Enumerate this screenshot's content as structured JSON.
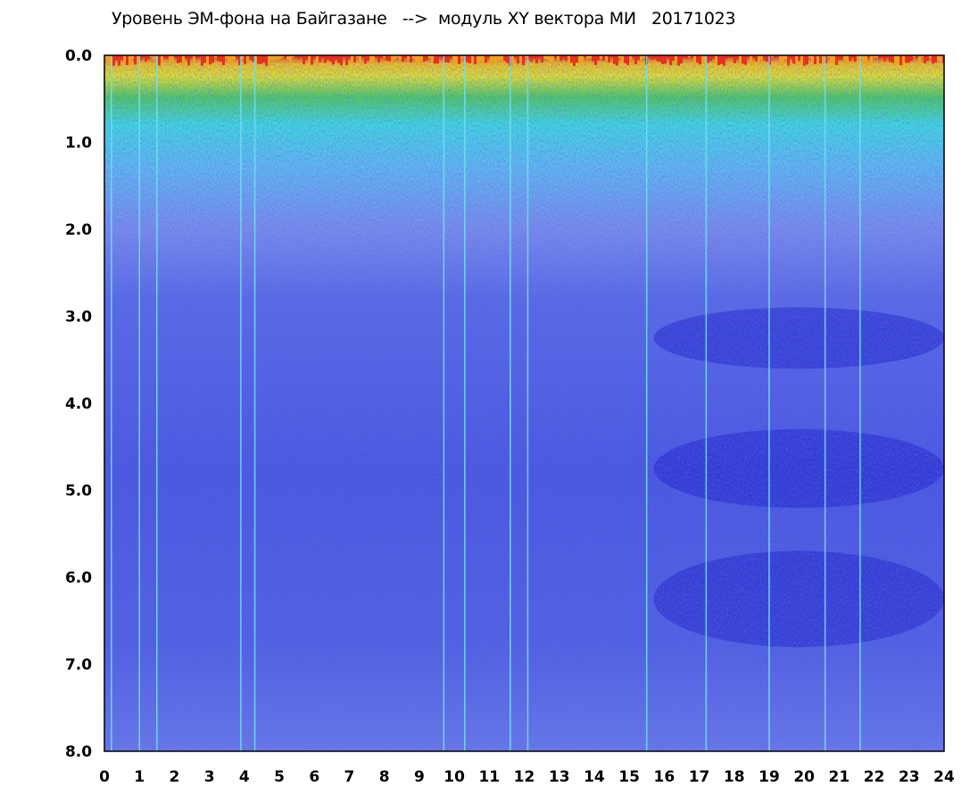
{
  "chart_data": {
    "type": "heatmap",
    "title": "Уровень ЭМ-фона на Байгазане   -->  модуль XY вектора МИ   20171023",
    "xlabel": "",
    "ylabel": "",
    "xlim": [
      0,
      24
    ],
    "ylim": [
      0.0,
      8.0
    ],
    "y_axis_inverted": true,
    "x_ticks": [
      "0",
      "1",
      "2",
      "3",
      "4",
      "5",
      "6",
      "7",
      "8",
      "9",
      "10",
      "11",
      "12",
      "13",
      "14",
      "15",
      "16",
      "17",
      "18",
      "19",
      "20",
      "21",
      "22",
      "23",
      "24"
    ],
    "y_ticks": [
      "0.0",
      "1.0",
      "2.0",
      "3.0",
      "4.0",
      "5.0",
      "6.0",
      "7.0",
      "8.0"
    ],
    "grid": false,
    "colorscale": [
      "#2222d8",
      "#5a6ae8",
      "#9aa8f0",
      "#40e0e8",
      "#20a020",
      "#e8e820",
      "#f0a020",
      "#e82020"
    ],
    "background_color": "#4a55e0",
    "bright_vertical_lines_x": [
      0.2,
      1.0,
      1.5,
      3.9,
      4.3,
      9.7,
      10.3,
      11.6,
      12.1,
      15.5,
      17.2,
      19.0,
      20.6,
      21.6
    ],
    "dark_band_regions": [
      {
        "x": [
          15.7,
          24.0
        ],
        "y": [
          3.0,
          3.5
        ]
      },
      {
        "x": [
          15.7,
          24.0
        ],
        "y": [
          4.4,
          5.1
        ]
      },
      {
        "x": [
          15.7,
          24.0
        ],
        "y": [
          5.8,
          6.7
        ]
      }
    ]
  }
}
